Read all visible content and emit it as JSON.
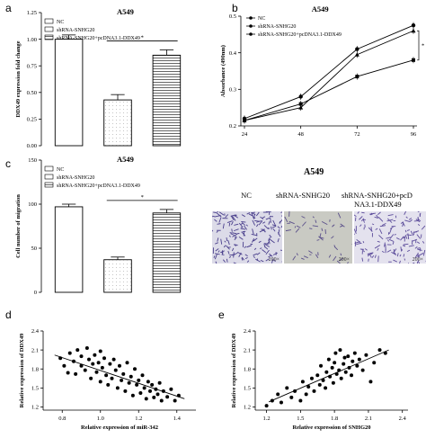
{
  "panels": {
    "a": {
      "letter": "a",
      "title": "A549"
    },
    "b": {
      "letter": "b",
      "title": "A549"
    },
    "c": {
      "letter": "c",
      "title": "A549"
    },
    "c_images": {
      "title": "A549",
      "labels": [
        "NC",
        "shRNA-SNHG20",
        "shRNA-SNHG20+pcD",
        "NA3.1-DDX49"
      ],
      "scale": "200×"
    },
    "d": {
      "letter": "d"
    },
    "e": {
      "letter": "e"
    }
  },
  "legend": {
    "nc": "NC",
    "sh": "shRNA-SNHG20",
    "combo": "shRNA-SNHG20+pcDNA3.1-DDX49"
  },
  "sig": "*",
  "chart_data": [
    {
      "id": "a",
      "type": "bar",
      "title": "A549",
      "ylabel": "DDX49 expression fold change",
      "ylim": [
        0,
        1.25
      ],
      "yticks": [
        "0.00",
        "0.25",
        "0.50",
        "0.75",
        "1.00",
        "1.25"
      ],
      "categories": [
        "NC",
        "shRNA-SNHG20",
        "shRNA-SNHG20+pcDNA3.1-DDX49"
      ],
      "values": [
        1.0,
        0.43,
        0.85
      ],
      "errors": [
        0.04,
        0.05,
        0.05
      ]
    },
    {
      "id": "b",
      "type": "line",
      "title": "A549",
      "ylabel": "Absorbance (490nm)",
      "xlim": [
        24,
        96
      ],
      "ylim": [
        0.2,
        0.5
      ],
      "x": [
        24,
        48,
        72,
        96
      ],
      "xticks": [
        "24",
        "48",
        "72",
        "96"
      ],
      "yticks": [
        "0.2",
        "0.3",
        "0.4",
        "0.5"
      ],
      "series": [
        {
          "name": "NC",
          "values": [
            0.22,
            0.28,
            0.41,
            0.475
          ]
        },
        {
          "name": "shRNA-SNHG20",
          "values": [
            0.215,
            0.26,
            0.335,
            0.38
          ]
        },
        {
          "name": "shRNA-SNHG20+pcDNA3.1-DDX49",
          "values": [
            0.215,
            0.25,
            0.395,
            0.46
          ]
        }
      ]
    },
    {
      "id": "c",
      "type": "bar",
      "title": "A549",
      "ylabel": "Cell number of migration",
      "ylim": [
        0,
        150
      ],
      "yticks": [
        "0",
        "50",
        "100",
        "150"
      ],
      "categories": [
        "NC",
        "shRNA-SNHG20",
        "shRNA-SNHG20+pcDNA3.1-DDX49"
      ],
      "values": [
        97,
        37,
        90
      ],
      "errors": [
        3,
        3,
        4
      ]
    },
    {
      "id": "d",
      "type": "scatter",
      "xlabel": "Relative expression of miR-342",
      "ylabel": "Relative expression of DDX49",
      "xlim": [
        0.7,
        1.5
      ],
      "ylim": [
        1.15,
        2.4
      ],
      "xticks": [
        "0.8",
        "1.0",
        "1.2",
        "1.4"
      ],
      "yticks": [
        "1.2",
        "1.5",
        "1.8",
        "2.1",
        "2.4"
      ],
      "fit": [
        [
          0.76,
          2.02
        ],
        [
          1.44,
          1.33
        ]
      ],
      "points": [
        [
          0.79,
          1.97
        ],
        [
          0.81,
          1.85
        ],
        [
          0.83,
          1.74
        ],
        [
          0.84,
          2.05
        ],
        [
          0.86,
          1.92
        ],
        [
          0.87,
          1.72
        ],
        [
          0.88,
          2.1
        ],
        [
          0.9,
          2.0
        ],
        [
          0.9,
          1.85
        ],
        [
          0.92,
          1.78
        ],
        [
          0.93,
          2.13
        ],
        [
          0.94,
          1.95
        ],
        [
          0.95,
          1.65
        ],
        [
          0.96,
          1.88
        ],
        [
          0.97,
          2.02
        ],
        [
          0.98,
          1.75
        ],
        [
          0.99,
          1.9
        ],
        [
          1.0,
          1.6
        ],
        [
          1.0,
          2.08
        ],
        [
          1.01,
          1.82
        ],
        [
          1.02,
          1.97
        ],
        [
          1.03,
          1.7
        ],
        [
          1.04,
          1.55
        ],
        [
          1.05,
          1.88
        ],
        [
          1.06,
          1.65
        ],
        [
          1.07,
          1.95
        ],
        [
          1.08,
          1.78
        ],
        [
          1.09,
          1.5
        ],
        [
          1.1,
          1.85
        ],
        [
          1.11,
          1.62
        ],
        [
          1.12,
          1.72
        ],
        [
          1.13,
          1.45
        ],
        [
          1.14,
          1.9
        ],
        [
          1.15,
          1.58
        ],
        [
          1.16,
          1.68
        ],
        [
          1.17,
          1.38
        ],
        [
          1.18,
          1.8
        ],
        [
          1.19,
          1.55
        ],
        [
          1.2,
          1.62
        ],
        [
          1.21,
          1.42
        ],
        [
          1.22,
          1.7
        ],
        [
          1.23,
          1.5
        ],
        [
          1.24,
          1.33
        ],
        [
          1.25,
          1.6
        ],
        [
          1.26,
          1.45
        ],
        [
          1.27,
          1.55
        ],
        [
          1.28,
          1.35
        ],
        [
          1.29,
          1.48
        ],
        [
          1.3,
          1.4
        ],
        [
          1.31,
          1.58
        ],
        [
          1.32,
          1.3
        ],
        [
          1.33,
          1.45
        ],
        [
          1.35,
          1.36
        ],
        [
          1.37,
          1.48
        ],
        [
          1.39,
          1.3
        ],
        [
          1.41,
          1.38
        ]
      ]
    },
    {
      "id": "e",
      "type": "scatter",
      "xlabel": "Relative expression of SNHG20",
      "ylabel": "Relative expression of DDX49",
      "xlim": [
        1.1,
        2.45
      ],
      "ylim": [
        1.15,
        2.4
      ],
      "xticks": [
        "1.2",
        "1.5",
        "1.8",
        "2.1",
        "2.4"
      ],
      "yticks": [
        "1.2",
        "1.5",
        "1.8",
        "2.1",
        "2.4"
      ],
      "fit": [
        [
          1.22,
          1.28
        ],
        [
          2.28,
          2.1
        ]
      ],
      "points": [
        [
          1.2,
          1.22
        ],
        [
          1.25,
          1.3
        ],
        [
          1.3,
          1.4
        ],
        [
          1.33,
          1.27
        ],
        [
          1.38,
          1.5
        ],
        [
          1.42,
          1.35
        ],
        [
          1.45,
          1.45
        ],
        [
          1.5,
          1.3
        ],
        [
          1.52,
          1.6
        ],
        [
          1.55,
          1.4
        ],
        [
          1.57,
          1.52
        ],
        [
          1.6,
          1.65
        ],
        [
          1.62,
          1.45
        ],
        [
          1.65,
          1.7
        ],
        [
          1.67,
          1.55
        ],
        [
          1.68,
          1.85
        ],
        [
          1.7,
          1.62
        ],
        [
          1.72,
          1.5
        ],
        [
          1.73,
          1.75
        ],
        [
          1.75,
          1.95
        ],
        [
          1.76,
          1.68
        ],
        [
          1.78,
          1.82
        ],
        [
          1.79,
          1.58
        ],
        [
          1.8,
          1.9
        ],
        [
          1.81,
          2.05
        ],
        [
          1.82,
          1.72
        ],
        [
          1.84,
          1.78
        ],
        [
          1.85,
          2.1
        ],
        [
          1.86,
          1.65
        ],
        [
          1.88,
          1.88
        ],
        [
          1.89,
          1.98
        ],
        [
          1.9,
          1.75
        ],
        [
          1.92,
          2.0
        ],
        [
          1.93,
          1.82
        ],
        [
          1.95,
          1.7
        ],
        [
          1.96,
          1.92
        ],
        [
          1.98,
          2.05
        ],
        [
          2.0,
          1.85
        ],
        [
          2.02,
          1.95
        ],
        [
          2.05,
          1.78
        ],
        [
          2.08,
          2.02
        ],
        [
          2.12,
          1.6
        ],
        [
          2.15,
          1.9
        ],
        [
          2.2,
          2.1
        ],
        [
          2.25,
          2.05
        ]
      ]
    }
  ]
}
